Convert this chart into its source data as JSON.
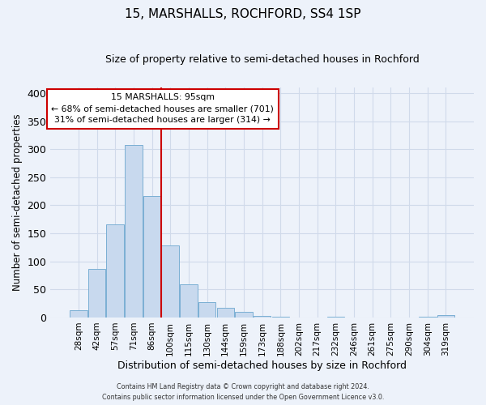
{
  "title": "15, MARSHALLS, ROCHFORD, SS4 1SP",
  "subtitle": "Size of property relative to semi-detached houses in Rochford",
  "bar_labels": [
    "28sqm",
    "42sqm",
    "57sqm",
    "71sqm",
    "86sqm",
    "100sqm",
    "115sqm",
    "130sqm",
    "144sqm",
    "159sqm",
    "173sqm",
    "188sqm",
    "202sqm",
    "217sqm",
    "232sqm",
    "246sqm",
    "261sqm",
    "275sqm",
    "290sqm",
    "304sqm",
    "319sqm"
  ],
  "bar_values": [
    13,
    86,
    166,
    307,
    217,
    129,
    59,
    27,
    17,
    10,
    3,
    1,
    0,
    0,
    2,
    0,
    0,
    0,
    0,
    1,
    4
  ],
  "bar_color": "#c8d9ee",
  "bar_edgecolor": "#7bafd4",
  "vline_x": 4.5,
  "vline_color": "#cc0000",
  "xlabel": "Distribution of semi-detached houses by size in Rochford",
  "ylabel": "Number of semi-detached properties",
  "ylim": [
    0,
    410
  ],
  "yticks": [
    0,
    50,
    100,
    150,
    200,
    250,
    300,
    350,
    400
  ],
  "annotation_title": "15 MARSHALLS: 95sqm",
  "annotation_line1": "← 68% of semi-detached houses are smaller (701)",
  "annotation_line2": "31% of semi-detached houses are larger (314) →",
  "annotation_box_facecolor": "#ffffff",
  "annotation_box_edgecolor": "#cc0000",
  "footer_line1": "Contains HM Land Registry data © Crown copyright and database right 2024.",
  "footer_line2": "Contains public sector information licensed under the Open Government Licence v3.0.",
  "background_color": "#edf2fa",
  "grid_color": "#d0daea"
}
